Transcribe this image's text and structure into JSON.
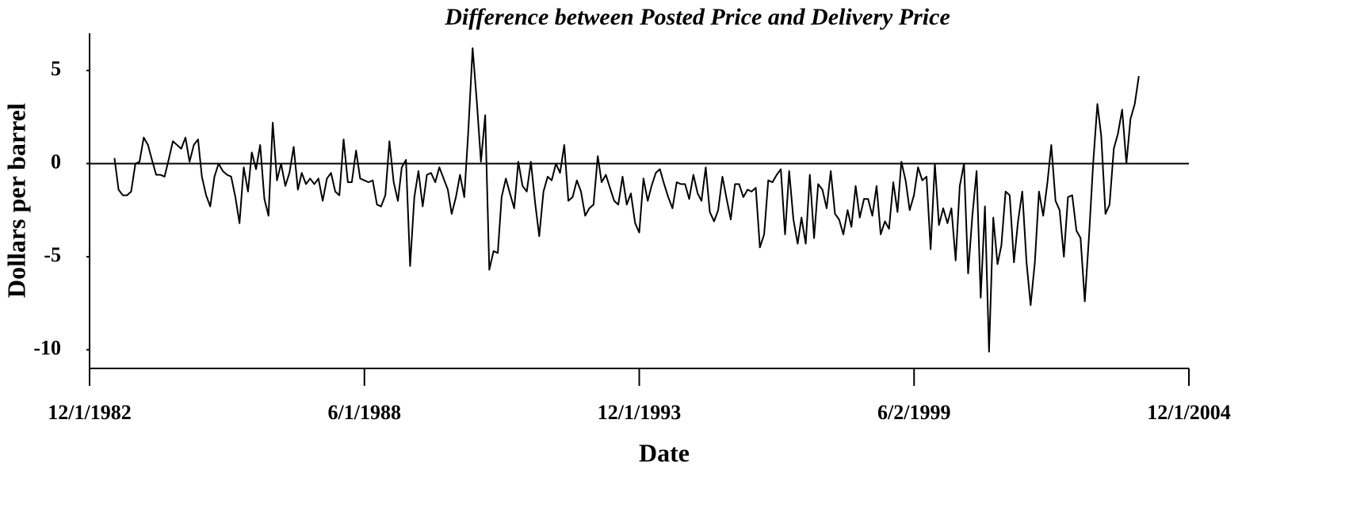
{
  "chart_data": {
    "type": "line",
    "title": "Difference between Posted Price and Delivery Price",
    "xlabel": "Date",
    "ylabel": "Dollars per barrel",
    "color": "#000000",
    "zero_line": true,
    "xlim": [
      "12/1/1982",
      "12/1/2004"
    ],
    "xticks": [
      "12/1/1982",
      "6/1/1988",
      "12/1/1993",
      "6/2/1999",
      "12/1/2004"
    ],
    "ylim": [
      -11,
      7
    ],
    "yticks": [
      5,
      0,
      -5,
      -10
    ],
    "x": [
      "6/1/1983",
      "7/1/1983",
      "8/1/1983",
      "9/1/1983",
      "10/1/1983",
      "11/1/1983",
      "12/1/1983",
      "1/1/1984",
      "2/1/1984",
      "3/1/1984",
      "4/1/1984",
      "5/1/1984",
      "6/1/1984",
      "7/1/1984",
      "8/1/1984",
      "9/1/1984",
      "10/1/1984",
      "11/1/1984",
      "12/1/1984",
      "1/1/1985",
      "2/1/1985",
      "3/1/1985",
      "4/1/1985",
      "5/1/1985",
      "6/1/1985",
      "7/1/1985",
      "8/1/1985",
      "9/1/1985",
      "10/1/1985",
      "11/1/1985",
      "12/1/1985",
      "1/1/1986",
      "2/1/1986",
      "3/1/1986",
      "4/1/1986",
      "5/1/1986",
      "6/1/1986",
      "7/1/1986",
      "8/1/1986",
      "9/1/1986",
      "10/1/1986",
      "11/1/1986",
      "12/1/1986",
      "1/1/1987",
      "2/1/1987",
      "3/1/1987",
      "4/1/1987",
      "5/1/1987",
      "6/1/1987",
      "7/1/1987",
      "8/1/1987",
      "9/1/1987",
      "10/1/1987",
      "11/1/1987",
      "12/1/1987",
      "1/1/1988",
      "2/1/1988",
      "3/1/1988",
      "4/1/1988",
      "5/1/1988",
      "6/1/1988",
      "7/1/1988",
      "8/1/1988",
      "9/1/1988",
      "10/1/1988",
      "11/1/1988",
      "12/1/1988",
      "1/1/1989",
      "2/1/1989",
      "3/1/1989",
      "4/1/1989",
      "5/1/1989",
      "6/1/1989",
      "7/1/1989",
      "8/1/1989",
      "9/1/1989",
      "10/1/1989",
      "11/1/1989",
      "12/1/1989",
      "1/1/1990",
      "2/1/1990",
      "3/1/1990",
      "4/1/1990",
      "5/1/1990",
      "6/1/1990",
      "7/1/1990",
      "8/1/1990",
      "9/1/1990",
      "10/1/1990",
      "11/1/1990",
      "12/1/1990",
      "1/1/1991",
      "2/1/1991",
      "3/1/1991",
      "4/1/1991",
      "5/1/1991",
      "6/1/1991",
      "7/1/1991",
      "8/1/1991",
      "9/1/1991",
      "10/1/1991",
      "11/1/1991",
      "12/1/1991",
      "1/1/1992",
      "2/1/1992",
      "3/1/1992",
      "4/1/1992",
      "5/1/1992",
      "6/1/1992",
      "7/1/1992",
      "8/1/1992",
      "9/1/1992",
      "10/1/1992",
      "11/1/1992",
      "12/1/1992",
      "1/1/1993",
      "2/1/1993",
      "3/1/1993",
      "4/1/1993",
      "5/1/1993",
      "6/1/1993",
      "7/1/1993",
      "8/1/1993",
      "9/1/1993",
      "10/1/1993",
      "11/1/1993",
      "12/1/1993",
      "1/1/1994",
      "2/1/1994",
      "3/1/1994",
      "4/1/1994",
      "5/1/1994",
      "6/1/1994",
      "7/1/1994",
      "8/1/1994",
      "9/1/1994",
      "10/1/1994",
      "11/1/1994",
      "12/1/1994",
      "1/1/1995",
      "2/1/1995",
      "3/1/1995",
      "4/1/1995",
      "5/1/1995",
      "6/1/1995",
      "7/1/1995",
      "8/1/1995",
      "9/1/1995",
      "10/1/1995",
      "11/1/1995",
      "12/1/1995",
      "1/1/1996",
      "2/1/1996",
      "3/1/1996",
      "4/1/1996",
      "5/1/1996",
      "6/1/1996",
      "7/1/1996",
      "8/1/1996",
      "9/1/1996",
      "10/1/1996",
      "11/1/1996",
      "12/1/1996",
      "1/1/1997",
      "2/1/1997",
      "3/1/1997",
      "4/1/1997",
      "5/1/1997",
      "6/1/1997",
      "7/1/1997",
      "8/1/1997",
      "9/1/1997",
      "10/1/1997",
      "11/1/1997",
      "12/1/1997",
      "1/1/1998",
      "2/1/1998",
      "3/1/1998",
      "4/1/1998",
      "5/1/1998",
      "6/1/1998",
      "7/1/1998",
      "8/1/1998",
      "9/1/1998",
      "10/1/1998",
      "11/1/1998",
      "12/1/1998",
      "1/1/1999",
      "2/1/1999",
      "3/1/1999",
      "4/1/1999",
      "5/1/1999",
      "6/1/1999",
      "7/1/1999",
      "8/1/1999",
      "9/1/1999",
      "10/1/1999",
      "11/1/1999",
      "12/1/1999",
      "1/1/2000",
      "2/1/2000",
      "3/1/2000",
      "4/1/2000",
      "5/1/2000",
      "6/1/2000",
      "7/1/2000",
      "8/1/2000",
      "9/1/2000",
      "10/1/2000",
      "11/1/2000",
      "12/1/2000",
      "1/1/2001",
      "2/1/2001",
      "3/1/2001",
      "4/1/2001",
      "5/1/2001",
      "6/1/2001",
      "7/1/2001",
      "8/1/2001",
      "9/1/2001",
      "10/1/2001",
      "11/1/2001",
      "12/1/2001",
      "1/1/2002",
      "2/1/2002",
      "3/1/2002",
      "4/1/2002",
      "5/1/2002",
      "6/1/2002",
      "7/1/2002",
      "8/1/2002",
      "9/1/2002",
      "10/1/2002",
      "11/1/2002",
      "12/1/2002",
      "1/1/2003",
      "2/1/2003",
      "3/1/2003",
      "4/1/2003",
      "5/1/2003",
      "6/1/2003",
      "7/1/2003",
      "8/1/2003",
      "9/1/2003",
      "10/1/2003",
      "11/1/2003",
      "12/1/2003"
    ],
    "values": [
      0.3,
      -1.4,
      -1.7,
      -1.7,
      -1.5,
      0,
      0.1,
      1.4,
      1.0,
      0.2,
      -0.6,
      -0.6,
      -0.7,
      0.2,
      1.2,
      1.0,
      0.8,
      1.4,
      0.1,
      1.0,
      1.3,
      -0.7,
      -1.7,
      -2.3,
      -0.7,
      0,
      -0.4,
      -0.6,
      -0.7,
      -1.8,
      -3.2,
      -0.2,
      -1.5,
      0.6,
      -0.3,
      1.0,
      -1.9,
      -2.8,
      2.2,
      -0.9,
      0,
      -1.2,
      -0.5,
      0.9,
      -1.4,
      -0.5,
      -1.1,
      -0.8,
      -1.1,
      -0.8,
      -2.0,
      -0.8,
      -0.5,
      -1.5,
      -1.7,
      1.3,
      -1.0,
      -1.0,
      0.7,
      -0.8,
      -0.9,
      -1.0,
      -0.9,
      -2.2,
      -2.3,
      -1.7,
      1.2,
      -1.0,
      -2.0,
      -0.2,
      0.2,
      -5.5,
      -1.8,
      -0.4,
      -2.3,
      -0.6,
      -0.5,
      -1.0,
      -0.2,
      -0.8,
      -1.4,
      -2.7,
      -1.8,
      -0.6,
      -1.8,
      1.8,
      6.2,
      3.3,
      0.1,
      2.6,
      -5.7,
      -4.7,
      -4.8,
      -1.8,
      -0.8,
      -1.6,
      -2.4,
      0.1,
      -1.2,
      -1.5,
      0.1,
      -2.1,
      -3.9,
      -1.5,
      -0.7,
      -0.9,
      0,
      -0.5,
      1.0,
      -2.0,
      -1.8,
      -0.9,
      -1.5,
      -2.8,
      -2.4,
      -2.2,
      0.4,
      -1.0,
      -0.6,
      -1.3,
      -2.0,
      -2.2,
      -0.7,
      -2.2,
      -1.6,
      -3.2,
      -3.7,
      -0.8,
      -2.0,
      -1.2,
      -0.5,
      -0.3,
      -1.1,
      -1.8,
      -2.4,
      -1.0,
      -1.1,
      -1.1,
      -1.9,
      -0.6,
      -1.6,
      -2.0,
      -0.2,
      -2.6,
      -3.1,
      -2.5,
      -0.7,
      -1.9,
      -3.0,
      -1.1,
      -1.1,
      -1.8,
      -1.4,
      -1.5,
      -1.3,
      -4.5,
      -3.8,
      -0.9,
      -1.0,
      -0.6,
      -0.3,
      -3.8,
      -0.4,
      -3.0,
      -4.3,
      -2.9,
      -4.3,
      -0.6,
      -4.0,
      -1.1,
      -1.4,
      -2.4,
      -0.4,
      -2.7,
      -3.0,
      -3.8,
      -2.5,
      -3.4,
      -1.2,
      -2.9,
      -1.9,
      -1.9,
      -2.8,
      -1.2,
      -3.8,
      -3.1,
      -3.5,
      -1.0,
      -2.6,
      0.1,
      -0.9,
      -2.5,
      -1.7,
      -0.2,
      -0.9,
      -0.7,
      -4.6,
      0,
      -3.3,
      -2.4,
      -3.2,
      -2.4,
      -5.2,
      -1.2,
      0,
      -5.9,
      -2.8,
      -0.4,
      -7.2,
      -2.3,
      -10.1,
      -2.9,
      -5.4,
      -4.4,
      -1.5,
      -1.7,
      -5.3,
      -3.1,
      -1.5,
      -5.3,
      -7.6,
      -5.3,
      -1.5,
      -2.8,
      -1.0,
      1.0,
      -2.0,
      -2.5,
      -5.0,
      -1.8,
      -1.7,
      -3.6,
      -4.0,
      -7.4,
      -4.0,
      0,
      3.2,
      1.5,
      -2.7,
      -2.2,
      0.8,
      1.6,
      2.9,
      0,
      2.4,
      3.2,
      4.7
    ]
  }
}
